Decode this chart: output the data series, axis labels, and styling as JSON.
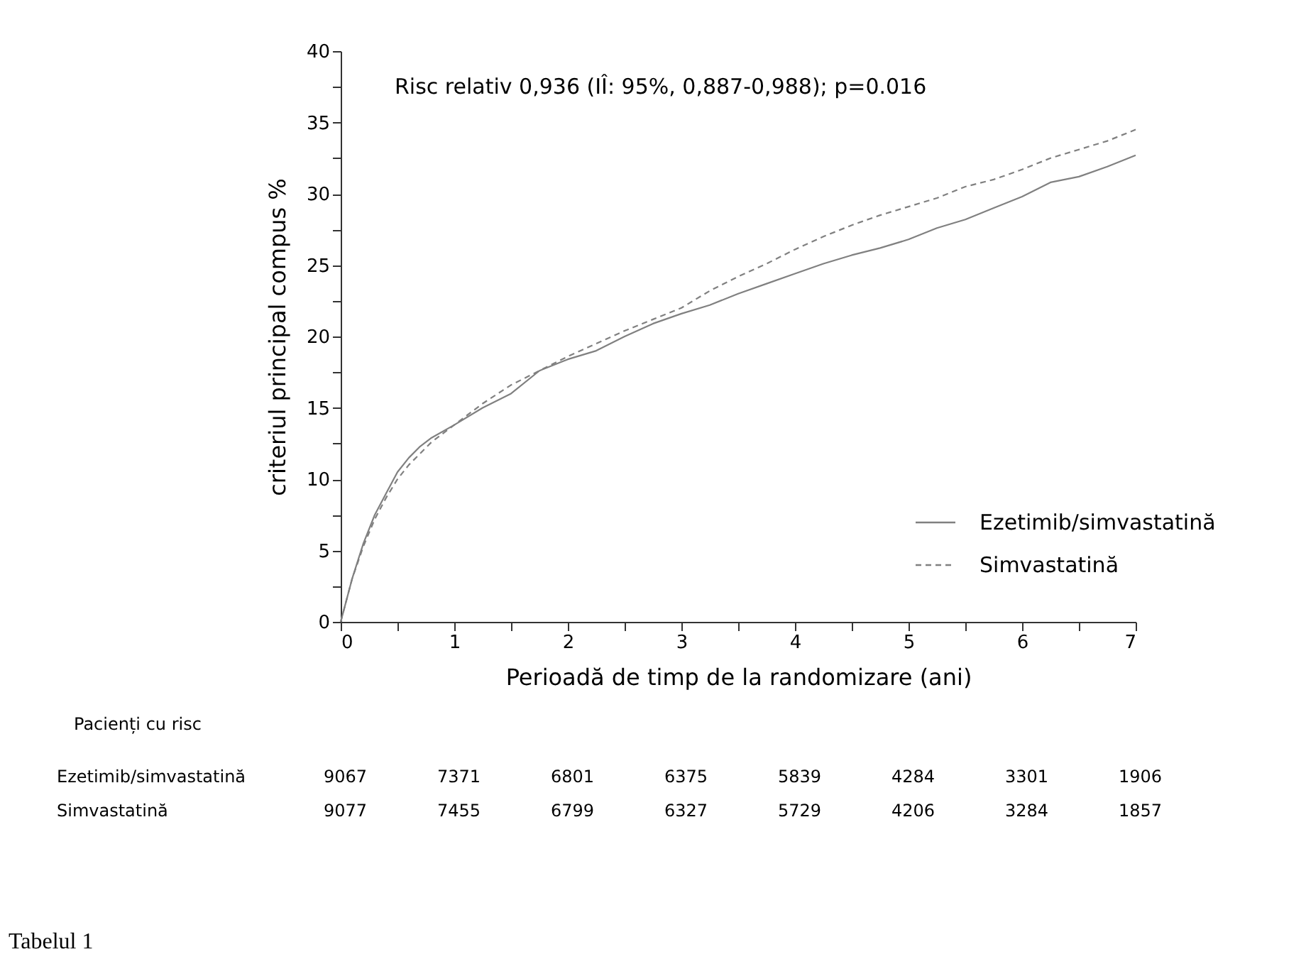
{
  "chart_data": {
    "type": "line",
    "xlabel": "Perioadă de timp de la randomizare (ani)",
    "ylabel": "criteriul principal compus %",
    "annotations": [
      "Risc relativ 0,936 (IÎ: 95%, 0,887-0,988);  p=0.016",
      "Pacienți cu risc",
      "Ezetimib/simvastatină",
      "9067",
      "7371",
      "6801",
      "6375",
      "5839",
      "4284",
      "3301",
      "1906",
      "Simvastatină",
      "9077",
      "7455",
      "6799",
      "6327",
      "5729",
      "4206",
      "3284",
      "1857",
      "Tabelul 1"
    ],
    "xlim": [
      0,
      7
    ],
    "ylim": [
      0,
      40
    ],
    "xticks": [
      0,
      {
        "value": 0.5,
        "label": null
      },
      1,
      {
        "value": 1.5,
        "label": null
      },
      2,
      {
        "value": 2.5,
        "label": null
      },
      3,
      {
        "value": 3.5,
        "label": null
      },
      4,
      {
        "value": 4.5,
        "label": null
      },
      5,
      {
        "value": 5.5,
        "label": null
      },
      6,
      {
        "value": 6.5,
        "label": null
      },
      7
    ],
    "yticks": [
      0,
      {
        "value": 2.5,
        "label": null
      },
      5,
      {
        "value": 7.5,
        "label": null
      },
      10,
      {
        "value": 12.5,
        "label": null
      },
      15,
      {
        "value": 17.5,
        "label": null
      },
      20,
      {
        "value": 22.5,
        "label": null
      },
      25,
      {
        "value": 27.5,
        "label": null
      },
      30,
      {
        "value": 32.5,
        "label": null
      },
      35,
      {
        "value": 37.5,
        "label": null
      },
      40
    ],
    "grid": false,
    "legend": "bottom right",
    "marker": "none",
    "series": [
      {
        "name": "Ezetimib/simvastatină",
        "color": "#808080",
        "line_style": "solid",
        "x": [
          0,
          0.05,
          0.1,
          0.2,
          0.3,
          0.4,
          0.5,
          0.6,
          0.7,
          0.8,
          1.0,
          1.25,
          1.5,
          1.75,
          2,
          2.25,
          2.5,
          2.75,
          3,
          3.25,
          3.5,
          3.75,
          4,
          4.25,
          4.5,
          4.75,
          5,
          5.25,
          5.5,
          5.75,
          6,
          6.25,
          6.5,
          6.75,
          7
        ],
        "values": [
          0,
          1.5,
          3,
          5.5,
          7.5,
          9,
          10.5,
          11.5,
          12.3,
          12.9,
          13.8,
          15,
          16,
          17.6,
          18.4,
          19,
          20,
          20.9,
          21.6,
          22.2,
          23,
          23.7,
          24.4,
          25.1,
          25.7,
          26.2,
          26.8,
          27.6,
          28.2,
          29,
          29.8,
          30.8,
          31.2,
          31.9,
          32.7
        ]
      },
      {
        "name": "Simvastatină",
        "color": "#808080",
        "line_style": "dashed",
        "x": [
          0,
          0.1,
          0.2,
          0.3,
          0.4,
          0.5,
          0.6,
          0.7,
          0.8,
          1.0,
          1.25,
          1.5,
          1.75,
          2,
          2.25,
          2.5,
          2.75,
          3,
          3.25,
          3.5,
          3.75,
          4,
          4.25,
          4.5,
          4.75,
          5,
          5.25,
          5.5,
          5.75,
          6,
          6.25,
          6.5,
          6.75,
          7
        ],
        "values": [
          0,
          3,
          5.3,
          7.2,
          8.7,
          10,
          11,
          11.8,
          12.6,
          13.8,
          15.3,
          16.6,
          17.6,
          18.6,
          19.5,
          20.4,
          21.2,
          22,
          23.2,
          24.2,
          25.1,
          26.1,
          27,
          27.8,
          28.5,
          29.1,
          29.7,
          30.5,
          31,
          31.7,
          32.5,
          33.1,
          33.7,
          34.5
        ]
      }
    ]
  }
}
